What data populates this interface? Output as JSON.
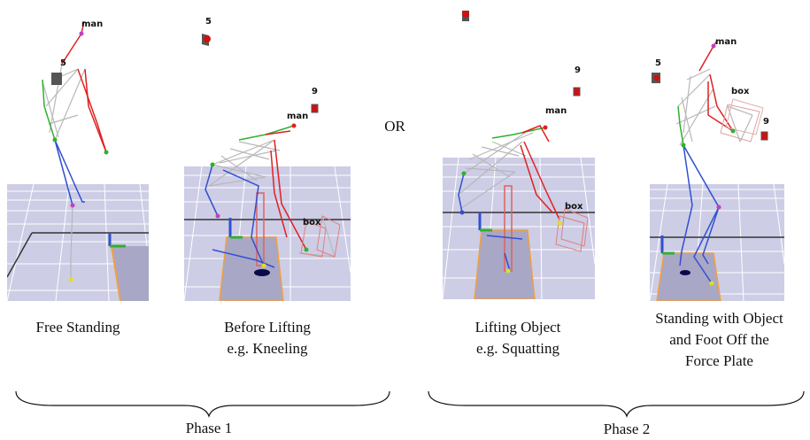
{
  "separator": "OR",
  "panels": [
    {
      "caption_lines": [
        "Free Standing"
      ],
      "tags": {
        "man": "man",
        "marker_a": "5"
      }
    },
    {
      "caption_lines": [
        "Before Lifting",
        "e.g. Kneeling"
      ],
      "tags": {
        "man": "man",
        "marker_a": "5",
        "marker_b": "9",
        "box": "box"
      }
    },
    {
      "caption_lines": [
        "Lifting Object",
        "e.g. Squatting"
      ],
      "tags": {
        "man": "man",
        "marker_b": "9",
        "box": "box"
      }
    },
    {
      "caption_lines": [
        "Standing with Object",
        "and Foot Off the",
        "Force Plate"
      ],
      "tags": {
        "man": "man",
        "marker_a": "5",
        "marker_b": "9",
        "box": "box"
      }
    }
  ],
  "phases": [
    {
      "label": "Phase 1"
    },
    {
      "label": "Phase 2"
    }
  ],
  "colors": {
    "right_limb": "#e02020",
    "left_limb": "#3050d0",
    "spine": "#30b030",
    "frame": "#b0b0b0",
    "floor": "#c9c9e4",
    "plate": "#a9a7c6",
    "plate_edge": "#f0a040",
    "marker": "#d01010"
  }
}
